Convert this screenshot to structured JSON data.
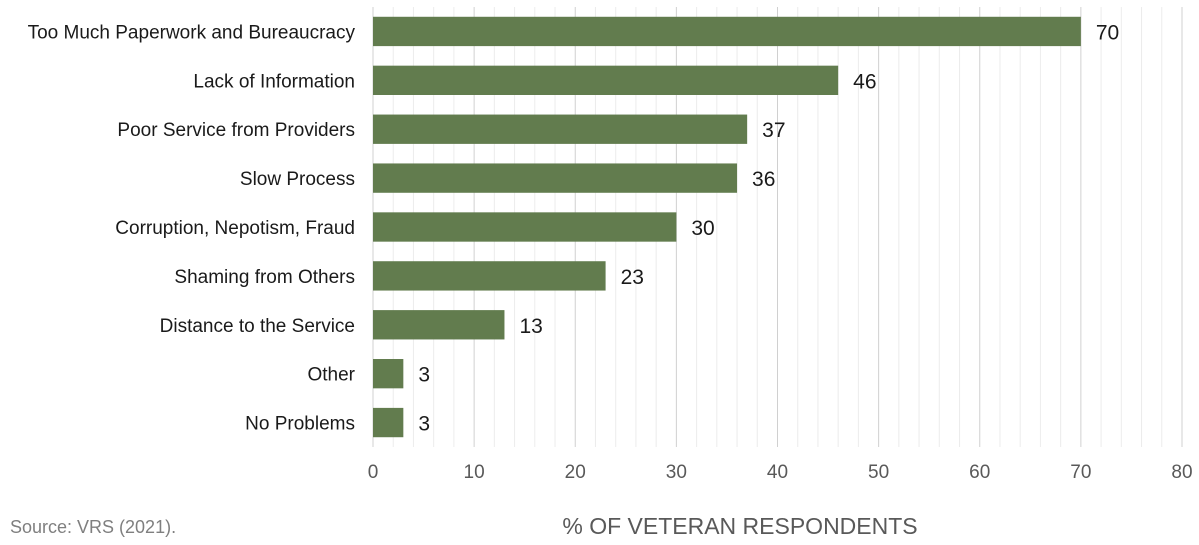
{
  "source": "Source: VRS (2021).",
  "chart_data": {
    "type": "bar",
    "orientation": "horizontal",
    "categories": [
      "Too Much Paperwork and Bureaucracy",
      "Lack of Information",
      "Poor Service from Providers",
      "Slow Process",
      "Corruption, Nepotism, Fraud",
      "Shaming from Others",
      "Distance to the Service",
      "Other",
      "No Problems"
    ],
    "values": [
      70,
      46,
      37,
      36,
      30,
      23,
      13,
      3,
      3
    ],
    "xlabel": "% OF VETERAN RESPONDENTS",
    "ylabel": "",
    "xlim": [
      0,
      80
    ],
    "xticks": [
      0,
      10,
      20,
      30,
      40,
      50,
      60,
      70,
      80
    ],
    "grid": "vertical",
    "bar_color": "#627c4e",
    "grid_color": "#d9d9d9"
  }
}
